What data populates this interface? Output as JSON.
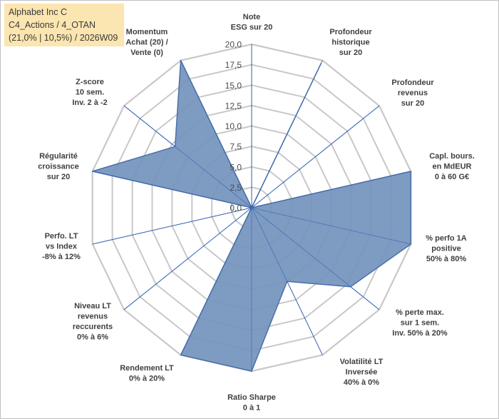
{
  "header": {
    "line1": "Alphabet Inc C",
    "line2": "C4_Actions / 4_OTAN",
    "line3": "(21,0% | 10,5%) / 2026W09"
  },
  "colors": {
    "fill": "#7393bd",
    "stroke": "#4a70a8",
    "grid_ring": "#c8c8c8",
    "grid_spoke": "#2e5fb5",
    "title_bg": "#fbe5b0"
  },
  "chart_data": {
    "type": "radar",
    "title": "Alphabet Inc C",
    "rmin": 0,
    "rmax": 20,
    "tick_step": 2.5,
    "tick_labels": [
      "0,0",
      "2,5",
      "5,0",
      "7,5",
      "10,0",
      "12,5",
      "15,0",
      "17,5",
      "20,0"
    ],
    "axes": [
      {
        "label": [
          "Note",
          "ESG sur 20"
        ],
        "value": 0
      },
      {
        "label": [
          "Profondeur",
          "historique",
          "sur 20"
        ],
        "value": 19.6
      },
      {
        "label": [
          "Profondeur",
          "revenus",
          "sur 20"
        ],
        "value": 0
      },
      {
        "label": [
          "Capl. bours.",
          "en MdEUR",
          "0 à 60 G€"
        ],
        "value": 20
      },
      {
        "label": [
          "% perfo 1A",
          "positive",
          "50% à 80%"
        ],
        "value": 20
      },
      {
        "label": [
          "% perte max.",
          "sur 1 sem.",
          "Inv. 50% à 20%"
        ],
        "value": 15.5
      },
      {
        "label": [
          "Volatilité LT",
          "Inversée",
          "40% à 0%"
        ],
        "value": 10
      },
      {
        "label": [
          "Ratio Sharpe",
          "0 à 1"
        ],
        "value": 20
      },
      {
        "label": [
          "Rendement LT",
          "0% à 20%"
        ],
        "value": 20
      },
      {
        "label": [
          "Niveau LT",
          "revenus",
          "reccurents",
          "0% à 6%"
        ],
        "value": 0
      },
      {
        "label": [
          "Perfo. LT",
          "vs Index",
          "-8% à 12%"
        ],
        "value": 0
      },
      {
        "label": [
          "Régularité",
          "croissance",
          "sur 20"
        ],
        "value": 20
      },
      {
        "label": [
          "Z-score",
          "10 sem.",
          "Inv. 2 à -2"
        ],
        "value": 12
      },
      {
        "label": [
          "Momentum",
          "Achat (20) /",
          "Vente (0)"
        ],
        "value": 20
      }
    ]
  }
}
